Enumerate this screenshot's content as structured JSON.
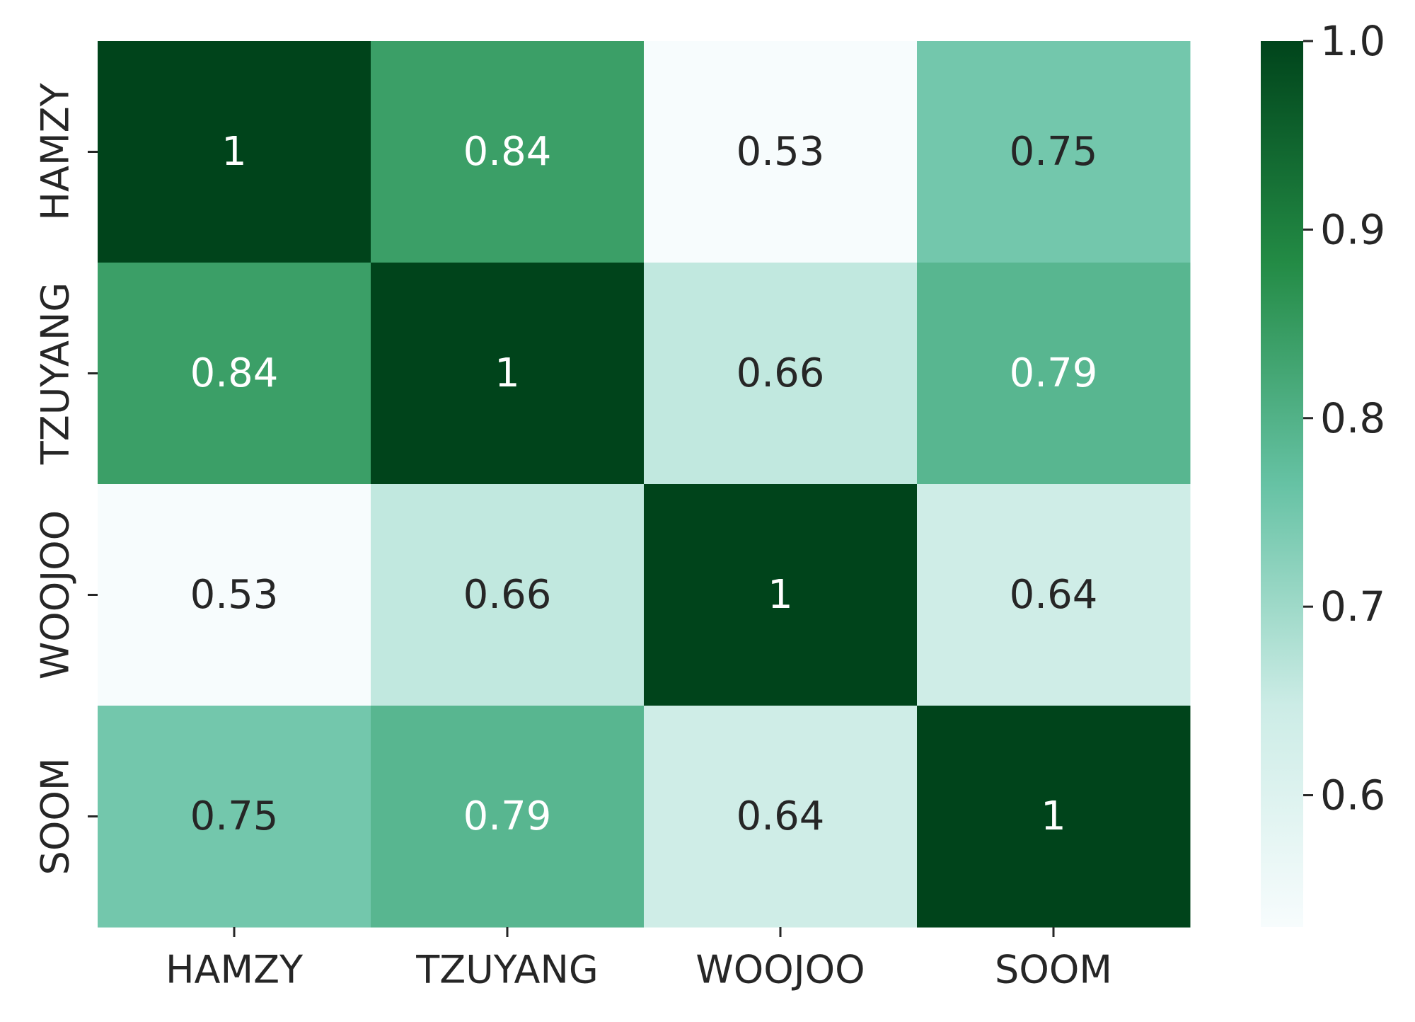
{
  "chart_data": {
    "type": "heatmap",
    "title": "",
    "xlabel": "",
    "ylabel": "",
    "x_categories": [
      "HAMZY",
      "TZUYANG",
      "WOOJOO",
      "SOOM"
    ],
    "y_categories": [
      "HAMZY",
      "TZUYANG",
      "WOOJOO",
      "SOOM"
    ],
    "values": [
      [
        1,
        0.84,
        0.53,
        0.75
      ],
      [
        0.84,
        1,
        0.66,
        0.79
      ],
      [
        0.53,
        0.66,
        1,
        0.64
      ],
      [
        0.75,
        0.79,
        0.64,
        1
      ]
    ],
    "annotations": [
      [
        "1",
        "0.84",
        "0.53",
        "0.75"
      ],
      [
        "0.84",
        "1",
        "0.66",
        "0.79"
      ],
      [
        "0.53",
        "0.66",
        "1",
        "0.64"
      ],
      [
        "0.75",
        "0.79",
        "0.64",
        "1"
      ]
    ],
    "colormap": "BuGn",
    "color_range": [
      0.53,
      1.0
    ],
    "colorbar": {
      "ticks": [
        0.6,
        0.7,
        0.8,
        0.9,
        1.0
      ],
      "tick_labels": [
        "0.6",
        "0.7",
        "0.8",
        "0.9",
        "1.0"
      ],
      "placement": "right"
    },
    "grid": false
  }
}
